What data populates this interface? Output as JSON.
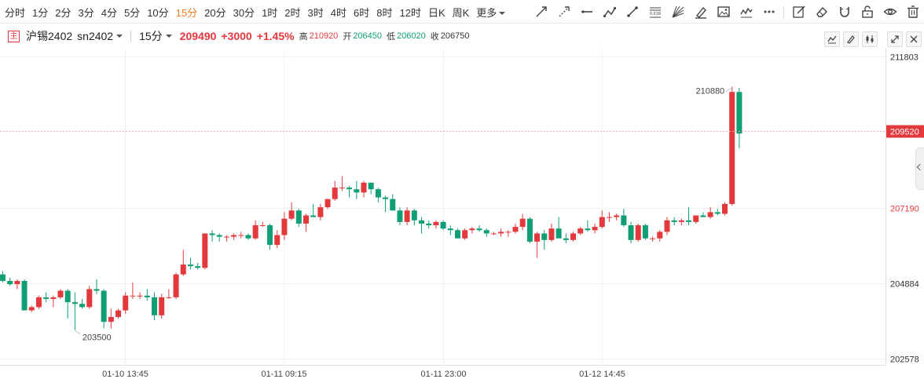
{
  "toolbar": {
    "periods": [
      {
        "label": "分时"
      },
      {
        "label": "1分"
      },
      {
        "label": "2分"
      },
      {
        "label": "3分"
      },
      {
        "label": "4分"
      },
      {
        "label": "5分"
      },
      {
        "label": "10分"
      },
      {
        "label": "15分"
      },
      {
        "label": "20分"
      },
      {
        "label": "30分"
      },
      {
        "label": "1时"
      },
      {
        "label": "2时"
      },
      {
        "label": "3时"
      },
      {
        "label": "4时"
      },
      {
        "label": "6时"
      },
      {
        "label": "8时"
      },
      {
        "label": "12时"
      },
      {
        "label": "日K"
      },
      {
        "label": "周K"
      },
      {
        "label": "更多"
      }
    ],
    "active_period": "15分",
    "tools": [
      "trend-line-icon",
      "ray-icon",
      "horizontal-line-icon",
      "polyline-icon",
      "segment-icon",
      "fibonacci-icon",
      "gann-fan-icon",
      "brush-icon",
      "picture-icon",
      "wave-icon",
      "more-dots-icon",
      "edit-icon",
      "eraser-icon",
      "magnet-icon",
      "lock-icon",
      "eye-icon",
      "trash-icon"
    ],
    "fib_text": "0.618"
  },
  "quote": {
    "badge": "主",
    "symbol": "沪锡2402",
    "code": "sn2402",
    "period": "15分",
    "price": "209490",
    "change": "+3000",
    "change_pct": "+1.45%",
    "high_label": "高",
    "high": "210920",
    "open_label": "开",
    "open": "206450",
    "low_label": "低",
    "low": "206020",
    "close_label": "收",
    "close": "206750",
    "colors": {
      "up": "#e4393c",
      "down": "#0f9e76",
      "accent": "#f47b20"
    }
  },
  "chart_data": {
    "type": "candlestick",
    "symbol": "沪锡2402",
    "interval": "15分",
    "ylim": [
      202578,
      211803
    ],
    "y_ticks": [
      211803,
      207190,
      204884,
      202578
    ],
    "x_ticks": [
      "01-10 13:45",
      "01-11 09:15",
      "01-11 23:00",
      "01-12 14:45"
    ],
    "current_price_line": 209520,
    "annotations": {
      "max": "210880",
      "min": "203500"
    },
    "grid": true,
    "candles": [
      [
        205150,
        205250,
        204900,
        204950
      ],
      [
        204950,
        205050,
        204800,
        204850
      ],
      [
        204850,
        205000,
        204700,
        204950
      ],
      [
        204950,
        205000,
        204050,
        204050
      ],
      [
        204050,
        204200,
        204000,
        204150
      ],
      [
        204150,
        204500,
        204100,
        204450
      ],
      [
        204450,
        204600,
        204300,
        204400
      ],
      [
        204400,
        204500,
        204150,
        204450
      ],
      [
        204450,
        204700,
        204400,
        204650
      ],
      [
        204650,
        204700,
        203800,
        204300
      ],
      [
        204300,
        204600,
        203450,
        204250
      ],
      [
        204250,
        204400,
        204100,
        204150
      ],
      [
        204150,
        204800,
        204100,
        204700
      ],
      [
        204700,
        205000,
        204550,
        204650
      ],
      [
        204650,
        204700,
        203500,
        203700
      ],
      [
        203700,
        204100,
        203500,
        203850
      ],
      [
        203850,
        204100,
        203800,
        204050
      ],
      [
        204050,
        204600,
        203950,
        204500
      ],
      [
        204500,
        204900,
        204400,
        204500
      ],
      [
        204500,
        204600,
        204400,
        204500
      ],
      [
        204500,
        204700,
        204350,
        204450
      ],
      [
        204450,
        204600,
        203750,
        203900
      ],
      [
        203900,
        204550,
        203800,
        204450
      ],
      [
        204450,
        204700,
        204400,
        204450
      ],
      [
        204450,
        205200,
        204400,
        205150
      ],
      [
        205150,
        205900,
        205100,
        205450
      ],
      [
        205450,
        205650,
        205300,
        205400
      ],
      [
        205400,
        205500,
        205300,
        205350
      ],
      [
        205350,
        206400,
        205300,
        206400
      ],
      [
        206400,
        206500,
        206150,
        206350
      ],
      [
        206350,
        206400,
        206150,
        206300
      ],
      [
        206300,
        206350,
        206150,
        206300
      ],
      [
        206300,
        206400,
        206200,
        206350
      ],
      [
        206350,
        206450,
        206250,
        206350
      ],
      [
        206350,
        206400,
        206200,
        206250
      ],
      [
        206250,
        206800,
        206200,
        206650
      ],
      [
        206650,
        206750,
        206600,
        206650
      ],
      [
        206650,
        206700,
        205900,
        206050
      ],
      [
        206050,
        206500,
        205950,
        206350
      ],
      [
        206350,
        207050,
        206200,
        206850
      ],
      [
        206850,
        207350,
        206800,
        207100
      ],
      [
        207100,
        207150,
        206600,
        206700
      ],
      [
        206700,
        207000,
        206450,
        206950
      ],
      [
        206950,
        207300,
        206900,
        206900
      ],
      [
        206900,
        207300,
        206800,
        207200
      ],
      [
        207200,
        207450,
        207150,
        207450
      ],
      [
        207450,
        208000,
        207400,
        207800
      ],
      [
        207800,
        208150,
        207700,
        207800
      ],
      [
        207800,
        207850,
        207500,
        207750
      ],
      [
        207750,
        208000,
        207450,
        207650
      ],
      [
        207650,
        208000,
        207500,
        207950
      ],
      [
        207950,
        207950,
        207600,
        207750
      ],
      [
        207750,
        207800,
        207350,
        207500
      ],
      [
        207500,
        207550,
        207050,
        207450
      ],
      [
        207450,
        207600,
        207100,
        207100
      ],
      [
        207100,
        207200,
        206650,
        206750
      ],
      [
        206750,
        207200,
        206650,
        207100
      ],
      [
        207100,
        207150,
        206650,
        206800
      ],
      [
        206800,
        206900,
        206400,
        206700
      ],
      [
        206700,
        206800,
        206550,
        206650
      ],
      [
        206650,
        206800,
        206550,
        206750
      ],
      [
        206750,
        206800,
        206500,
        206550
      ],
      [
        206550,
        206650,
        206350,
        206500
      ],
      [
        206500,
        206550,
        206250,
        206250
      ],
      [
        206250,
        206550,
        206200,
        206500
      ],
      [
        206500,
        206600,
        206400,
        206550
      ],
      [
        206550,
        206650,
        206450,
        206500
      ],
      [
        206500,
        206550,
        206300,
        206400
      ],
      [
        206400,
        206450,
        206350,
        206400
      ],
      [
        206400,
        206550,
        206300,
        206450
      ],
      [
        206450,
        206500,
        206300,
        206450
      ],
      [
        206450,
        206700,
        206400,
        206600
      ],
      [
        206600,
        207000,
        206500,
        206850
      ],
      [
        206850,
        206900,
        206100,
        206150
      ],
      [
        206150,
        206450,
        205650,
        206400
      ],
      [
        206400,
        206500,
        205900,
        206200
      ],
      [
        206200,
        206700,
        206150,
        206550
      ],
      [
        206550,
        206900,
        206250,
        206250
      ],
      [
        206250,
        206400,
        206100,
        206200
      ],
      [
        206200,
        206450,
        206150,
        206400
      ],
      [
        206400,
        206600,
        206350,
        206550
      ],
      [
        206550,
        206800,
        206450,
        206500
      ],
      [
        206500,
        206700,
        206400,
        206600
      ],
      [
        206600,
        207100,
        206550,
        206900
      ],
      [
        206900,
        207050,
        206750,
        206900
      ],
      [
        206900,
        207000,
        206800,
        206950
      ],
      [
        206950,
        207150,
        206600,
        206650
      ],
      [
        206650,
        206750,
        206100,
        206200
      ],
      [
        206200,
        206700,
        206150,
        206650
      ],
      [
        206650,
        206700,
        206200,
        206250
      ],
      [
        206250,
        206300,
        206150,
        206250
      ],
      [
        206250,
        206500,
        206150,
        206450
      ],
      [
        206450,
        206900,
        206350,
        206800
      ],
      [
        206800,
        206900,
        206650,
        206750
      ],
      [
        206750,
        206850,
        206650,
        206800
      ],
      [
        206800,
        207200,
        206650,
        206750
      ],
      [
        206750,
        206950,
        206700,
        206950
      ],
      [
        206950,
        207050,
        206900,
        206900
      ],
      [
        206900,
        207200,
        206850,
        207050
      ],
      [
        207050,
        207150,
        206950,
        207000
      ],
      [
        207000,
        207350,
        206950,
        207300
      ],
      [
        207300,
        210880,
        207250,
        210720
      ],
      [
        210720,
        210850,
        209000,
        209450
      ]
    ]
  }
}
